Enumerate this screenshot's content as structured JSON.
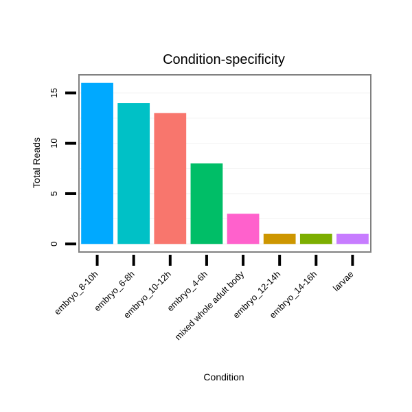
{
  "chart_data": {
    "type": "bar",
    "title": "Condition-specificity",
    "xlabel": "Condition",
    "ylabel": "Total Reads",
    "categories": [
      "embryo_8-10h",
      "embryo_6-8h",
      "embryo_10-12h",
      "embryo_4-6h",
      "mixed whole adult body",
      "embryo_12-14h",
      "embryo_14-16h",
      "larvae"
    ],
    "values": [
      16,
      14,
      13,
      8,
      3,
      1,
      1,
      1
    ],
    "colors": [
      "#00A9FF",
      "#00C1C6",
      "#F8766D",
      "#00BE67",
      "#FF61CC",
      "#CD9600",
      "#7CAE00",
      "#C77CFF"
    ],
    "ylim": [
      -0.8,
      16.8
    ],
    "yticks": [
      0,
      5,
      10,
      15
    ],
    "grid": true,
    "legend": "none",
    "panel_border_color": "#808080",
    "gridline_color": "#f2f2f2"
  }
}
